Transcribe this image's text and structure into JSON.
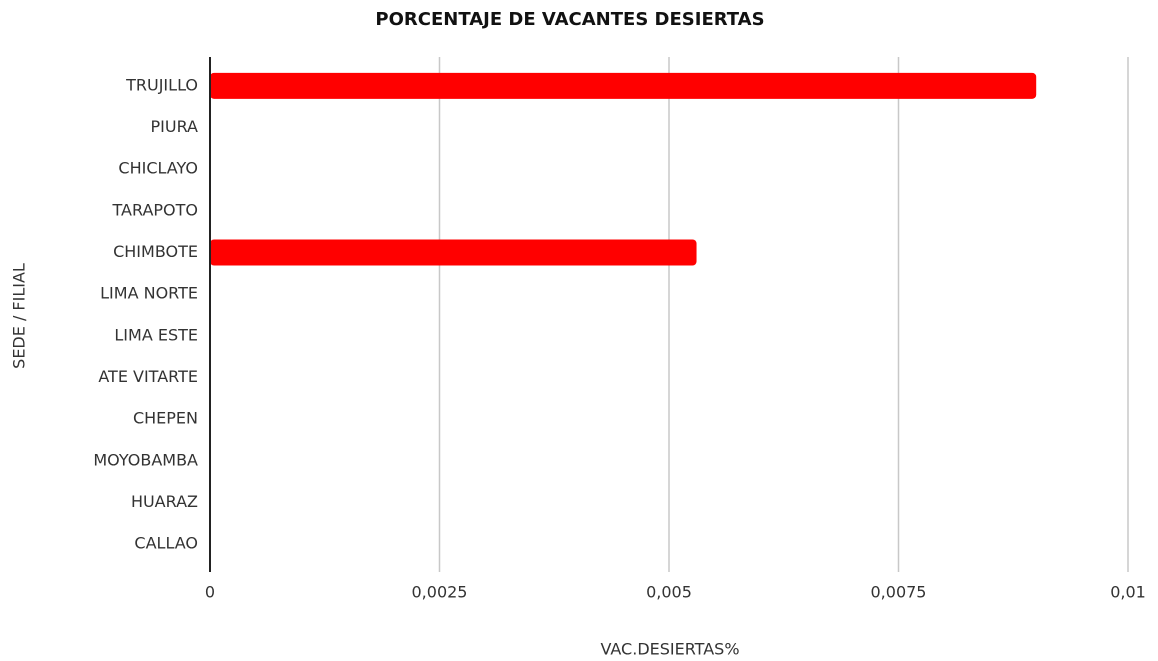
{
  "chart_data": {
    "type": "bar",
    "orientation": "horizontal",
    "title": "PORCENTAJE DE VACANTES DESIERTAS",
    "x_label": "VAC.DESIERTAS%",
    "y_label": "SEDE / FILIAL",
    "categories": [
      "TRUJILLO",
      "PIURA",
      "CHICLAYO",
      "TARAPOTO",
      "CHIMBOTE",
      "LIMA NORTE",
      "LIMA ESTE",
      "ATE VITARTE",
      "CHEPEN",
      "MOYOBAMBA",
      "HUARAZ",
      "CALLAO"
    ],
    "values": [
      0.009,
      0,
      0,
      0,
      0.0053,
      0,
      0,
      0,
      0,
      0,
      0,
      0
    ],
    "color": "#ff0000",
    "xlim": [
      0,
      0.01
    ],
    "xticks": [
      0,
      {
        "value": 0.0025,
        "label": "0,0025"
      },
      {
        "value": 0.005,
        "label": "0,005"
      },
      {
        "value": 0.0075,
        "label": "0,0075"
      },
      {
        "value": 0.01,
        "label": "0,01"
      }
    ],
    "grid": true
  }
}
